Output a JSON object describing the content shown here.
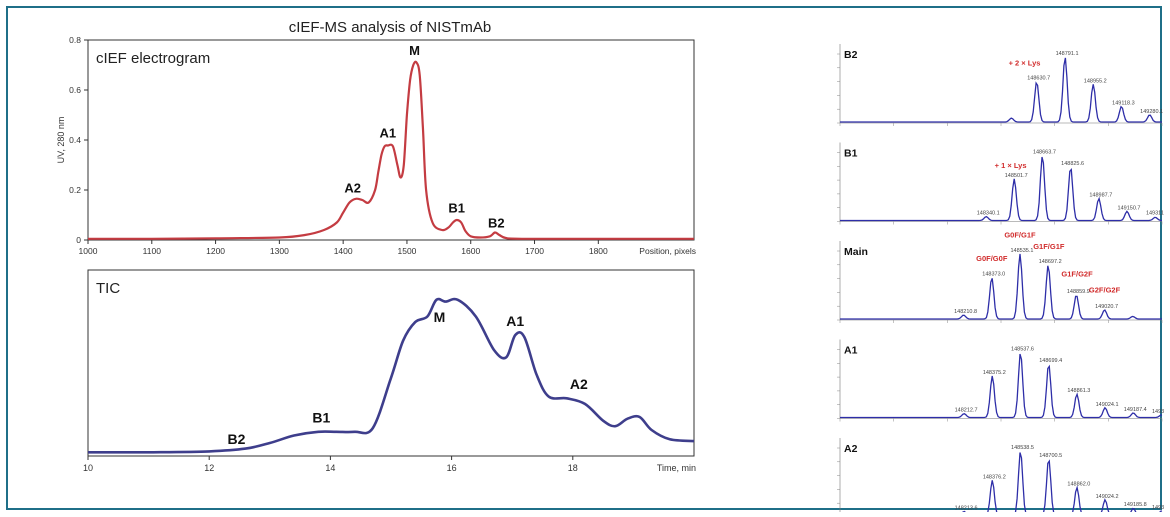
{
  "title": "cIEF-MS analysis of NISTmAb",
  "colors": {
    "cief": "#c43c42",
    "tic": "#3e3e8c",
    "ms": "#2e2ea8",
    "glycan_red": "#d12b2b",
    "frame": "#1f6f88"
  },
  "chart_data": [
    {
      "type": "line",
      "panel": "cIEF electrogram",
      "ylabel": "UV, 280 nm",
      "xlabel": "Position, pixels",
      "xlim": [
        1000,
        1950
      ],
      "ylim": [
        0,
        0.8
      ],
      "xticks": [
        1000,
        1100,
        1200,
        1300,
        1400,
        1500,
        1600,
        1700,
        1800
      ],
      "yticks": [
        0,
        0.2,
        0.4,
        0.6,
        0.8
      ],
      "ytick_labels": [
        "0",
        "0.2",
        "0.4",
        "0.6",
        "0.8"
      ],
      "series": [
        {
          "x": [
            1000,
            1100,
            1200,
            1300,
            1340,
            1370,
            1390,
            1400,
            1410,
            1420,
            1430,
            1440,
            1450,
            1455,
            1460,
            1465,
            1470,
            1478,
            1485,
            1490,
            1495,
            1500,
            1505,
            1510,
            1515,
            1520,
            1525,
            1530,
            1540,
            1555,
            1565,
            1572,
            1578,
            1585,
            1592,
            1600,
            1615,
            1630,
            1638,
            1645,
            1655,
            1680,
            1800,
            1950
          ],
          "y": [
            0.005,
            0.005,
            0.007,
            0.01,
            0.02,
            0.04,
            0.07,
            0.11,
            0.15,
            0.165,
            0.16,
            0.15,
            0.2,
            0.27,
            0.34,
            0.375,
            0.378,
            0.375,
            0.3,
            0.25,
            0.3,
            0.5,
            0.64,
            0.7,
            0.71,
            0.66,
            0.45,
            0.2,
            0.07,
            0.04,
            0.05,
            0.07,
            0.08,
            0.07,
            0.035,
            0.015,
            0.01,
            0.015,
            0.03,
            0.02,
            0.008,
            0.005,
            0.005,
            0.005
          ]
        }
      ],
      "annotations": [
        {
          "label": "A2",
          "x": 1415,
          "y": 0.19
        },
        {
          "label": "A1",
          "x": 1470,
          "y": 0.41
        },
        {
          "label": "M",
          "x": 1512,
          "y": 0.74
        },
        {
          "label": "B1",
          "x": 1578,
          "y": 0.11
        },
        {
          "label": "B2",
          "x": 1640,
          "y": 0.05
        }
      ]
    },
    {
      "type": "line",
      "panel": "TIC",
      "xlabel": "Time, min",
      "xlim": [
        10,
        20
      ],
      "ylim": [
        0,
        1
      ],
      "xticks": [
        10,
        12,
        14,
        16,
        18
      ],
      "series": [
        {
          "x": [
            10,
            11,
            12,
            12.6,
            13,
            13.4,
            13.8,
            14.1,
            14.4,
            14.7,
            15.0,
            15.2,
            15.4,
            15.6,
            15.75,
            15.9,
            16.1,
            16.4,
            16.7,
            16.9,
            17.05,
            17.2,
            17.4,
            17.6,
            17.9,
            18.2,
            18.5,
            18.7,
            18.9,
            19.1,
            19.3,
            19.6,
            20
          ],
          "y": [
            0.02,
            0.02,
            0.025,
            0.04,
            0.07,
            0.11,
            0.13,
            0.13,
            0.13,
            0.15,
            0.42,
            0.62,
            0.72,
            0.75,
            0.84,
            0.83,
            0.84,
            0.75,
            0.57,
            0.53,
            0.65,
            0.64,
            0.44,
            0.32,
            0.31,
            0.28,
            0.19,
            0.16,
            0.2,
            0.21,
            0.14,
            0.09,
            0.08
          ]
        }
      ],
      "annotations": [
        {
          "label": "B2",
          "x": 12.45,
          "y": 0.065
        },
        {
          "label": "B1",
          "x": 13.85,
          "y": 0.18
        },
        {
          "label": "M",
          "x": 15.8,
          "y": 0.72
        },
        {
          "label": "A1",
          "x": 17.05,
          "y": 0.7
        },
        {
          "label": "A2",
          "x": 18.1,
          "y": 0.36
        }
      ]
    },
    {
      "type": "line",
      "panel": "B2",
      "xlim": [
        147500,
        149350
      ],
      "ylim": [
        0,
        1
      ],
      "series": [
        {
          "peaks": [
            [
              148485,
              0.06
            ],
            [
              148630,
              0.62
            ],
            [
              148793,
              1.0
            ],
            [
              148955,
              0.58
            ],
            [
              149117,
              0.24
            ],
            [
              149279,
              0.11
            ]
          ]
        }
      ],
      "mass_labels": [
        {
          "text": "148791.1",
          "x": 148793,
          "y": 1.0
        },
        {
          "text": "148630.7",
          "x": 148630,
          "y": 0.62
        },
        {
          "text": "148955.2",
          "x": 148955,
          "y": 0.58
        },
        {
          "text": "149118.3",
          "x": 149117,
          "y": 0.24
        },
        {
          "text": "149280.1",
          "x": 149279,
          "y": 0.11
        }
      ],
      "red_labels": [
        {
          "text": "+ 2 × Lys",
          "x": 148560,
          "y": 0.84
        }
      ]
    },
    {
      "type": "line",
      "panel": "B1",
      "xlim": [
        147500,
        149350
      ],
      "ylim": [
        0,
        1
      ],
      "series": [
        {
          "peaks": [
            [
              148340,
              0.06
            ],
            [
              148501,
              0.64
            ],
            [
              148663,
              1.0
            ],
            [
              148825,
              0.82
            ],
            [
              148987,
              0.34
            ],
            [
              149149,
              0.14
            ],
            [
              149311,
              0.05
            ]
          ]
        }
      ],
      "mass_labels": [
        {
          "text": "148663.7",
          "x": 148663,
          "y": 1.0
        },
        {
          "text": "148825.6",
          "x": 148825,
          "y": 0.82
        },
        {
          "text": "148501.7",
          "x": 148501,
          "y": 0.64
        },
        {
          "text": "148987.7",
          "x": 148987,
          "y": 0.34
        },
        {
          "text": "149150.7",
          "x": 149149,
          "y": 0.14
        },
        {
          "text": "149311.9",
          "x": 149311,
          "y": 0.06
        },
        {
          "text": "148340.1",
          "x": 148340,
          "y": 0.06
        }
      ],
      "red_labels": [
        {
          "text": "+ 1 × Lys",
          "x": 148480,
          "y": 0.78
        }
      ]
    },
    {
      "type": "line",
      "panel": "Main",
      "xlim": [
        147500,
        149350
      ],
      "ylim": [
        0,
        1
      ],
      "series": [
        {
          "peaks": [
            [
              148210,
              0.06
            ],
            [
              148372,
              0.64
            ],
            [
              148534,
              1.0
            ],
            [
              148696,
              0.83
            ],
            [
              148858,
              0.37
            ],
            [
              149020,
              0.14
            ],
            [
              149182,
              0.04
            ]
          ]
        }
      ],
      "mass_labels": [
        {
          "text": "148535.1",
          "x": 148534,
          "y": 1.0
        },
        {
          "text": "148697.2",
          "x": 148696,
          "y": 0.83
        },
        {
          "text": "148373.0",
          "x": 148372,
          "y": 0.64
        },
        {
          "text": "148859.9",
          "x": 148858,
          "y": 0.37
        },
        {
          "text": "149020.7",
          "x": 149020,
          "y": 0.14
        },
        {
          "text": "148210.8",
          "x": 148210,
          "y": 0.06
        }
      ],
      "red_labels": [
        {
          "text": "G0F/G1F",
          "x": 148534,
          "y": 1.22
        },
        {
          "text": "G0F/G0F",
          "x": 148372,
          "y": 0.86
        },
        {
          "text": "G1F/G1F",
          "x": 148700,
          "y": 1.05
        },
        {
          "text": "G1F/G2F",
          "x": 148862,
          "y": 0.62
        },
        {
          "text": "G2F/G2F",
          "x": 149020,
          "y": 0.38
        }
      ]
    },
    {
      "type": "line",
      "panel": "A1",
      "xlim": [
        147500,
        149350
      ],
      "ylim": [
        0,
        1
      ],
      "series": [
        {
          "peaks": [
            [
              148213,
              0.06
            ],
            [
              148375,
              0.64
            ],
            [
              148537,
              1.0
            ],
            [
              148699,
              0.82
            ],
            [
              148861,
              0.36
            ],
            [
              149023,
              0.15
            ],
            [
              149185,
              0.07
            ],
            [
              149347,
              0.04
            ]
          ]
        }
      ],
      "mass_labels": [
        {
          "text": "148537.6",
          "x": 148537,
          "y": 1.0
        },
        {
          "text": "148699.4",
          "x": 148699,
          "y": 0.82
        },
        {
          "text": "148375.2",
          "x": 148375,
          "y": 0.64
        },
        {
          "text": "148861.3",
          "x": 148861,
          "y": 0.36
        },
        {
          "text": "149024.1",
          "x": 149023,
          "y": 0.15
        },
        {
          "text": "149187.4",
          "x": 149185,
          "y": 0.07
        },
        {
          "text": "149347.7",
          "x": 149347,
          "y": 0.04
        },
        {
          "text": "148212.7",
          "x": 148213,
          "y": 0.06
        }
      ]
    },
    {
      "type": "line",
      "panel": "A2",
      "xlim": [
        147500,
        149350
      ],
      "ylim": [
        0,
        1
      ],
      "series": [
        {
          "peaks": [
            [
              148213,
              0.07
            ],
            [
              148375,
              0.55
            ],
            [
              148537,
              1.0
            ],
            [
              148699,
              0.88
            ],
            [
              148861,
              0.44
            ],
            [
              149023,
              0.25
            ],
            [
              149185,
              0.12
            ],
            [
              149347,
              0.08
            ]
          ]
        }
      ],
      "mass_labels": [
        {
          "text": "148538.5",
          "x": 148537,
          "y": 1.0
        },
        {
          "text": "148700.5",
          "x": 148699,
          "y": 0.88
        },
        {
          "text": "148376.2",
          "x": 148375,
          "y": 0.55
        },
        {
          "text": "148862.0",
          "x": 148861,
          "y": 0.44
        },
        {
          "text": "149024.2",
          "x": 149023,
          "y": 0.25
        },
        {
          "text": "149185.8",
          "x": 149185,
          "y": 0.12
        },
        {
          "text": "149347.4",
          "x": 149347,
          "y": 0.08
        },
        {
          "text": "148213.6",
          "x": 148213,
          "y": 0.07
        }
      ]
    }
  ]
}
